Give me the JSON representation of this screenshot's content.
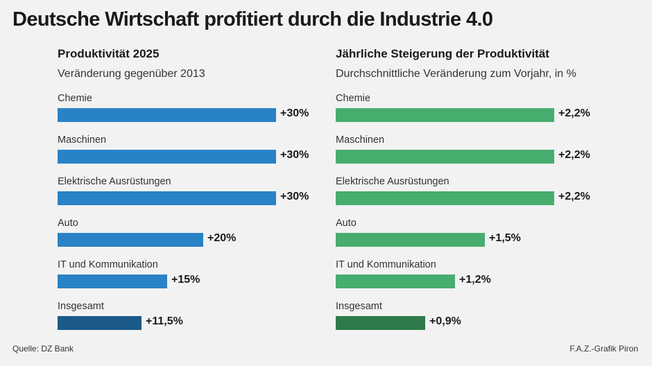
{
  "title": "Deutsche Wirtschaft profitiert durch die Industrie 4.0",
  "colors": {
    "blue": "#2a82c6",
    "blue_dark": "#1b5a87",
    "green": "#47ad6f",
    "green_dark": "#2e7a4a"
  },
  "chart_data": [
    {
      "type": "bar",
      "orientation": "horizontal",
      "title": "Produktivität 2025",
      "subtitle": "Veränderung gegenüber 2013",
      "categories": [
        "Chemie",
        "Maschinen",
        "Elektrische Ausrüstungen",
        "Auto",
        "IT und Kommunikation",
        "Insgesamt"
      ],
      "values": [
        30,
        30,
        30,
        20,
        15,
        11.5
      ],
      "labels": [
        "+30%",
        "+30%",
        "+30%",
        "+20%",
        "+15%",
        "+11,5%"
      ],
      "xlim": [
        0,
        30
      ],
      "unit": "%"
    },
    {
      "type": "bar",
      "orientation": "horizontal",
      "title": "Jährliche Steigerung der Produktivität",
      "subtitle": "Durchschnittliche Veränderung zum Vorjahr, in %",
      "categories": [
        "Chemie",
        "Maschinen",
        "Elektrische Ausrüstungen",
        "Auto",
        "IT und Kommunikation",
        "Insgesamt"
      ],
      "values": [
        2.2,
        2.2,
        2.2,
        1.5,
        1.2,
        0.9
      ],
      "labels": [
        "+2,2%",
        "+2,2%",
        "+2,2%",
        "+1,5%",
        "+1,2%",
        "+0,9%"
      ],
      "xlim": [
        0,
        2.2
      ],
      "unit": "%"
    }
  ],
  "footer": {
    "source": "Quelle: DZ Bank",
    "credit": "F.A.Z.-Grafik Piron"
  }
}
